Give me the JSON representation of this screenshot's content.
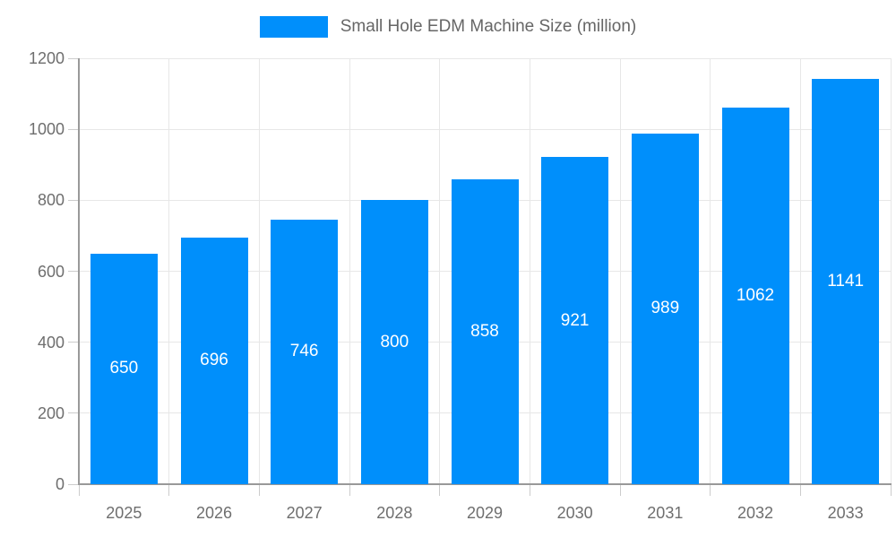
{
  "chart_data": {
    "type": "bar",
    "title": "Small Hole EDM Machine Size (million)",
    "categories": [
      "2025",
      "2026",
      "2027",
      "2028",
      "2029",
      "2030",
      "2031",
      "2032",
      "2033"
    ],
    "values": [
      650,
      696,
      746,
      800,
      858,
      921,
      989,
      1062,
      1141
    ],
    "xlabel": "",
    "ylabel": "",
    "ylim": [
      0,
      1200
    ],
    "yticks": [
      0,
      200,
      400,
      600,
      800,
      1000,
      1200
    ],
    "grid": true,
    "legend_position": "top-center",
    "colors": {
      "bar": "#008FFB",
      "grid": "#e7e7e7",
      "axis": "#999999",
      "tick": "#cccccc",
      "axis_text": "#6e6e6e",
      "legend_text": "#666666",
      "value_text": "#ffffff",
      "background": "#ffffff"
    }
  }
}
